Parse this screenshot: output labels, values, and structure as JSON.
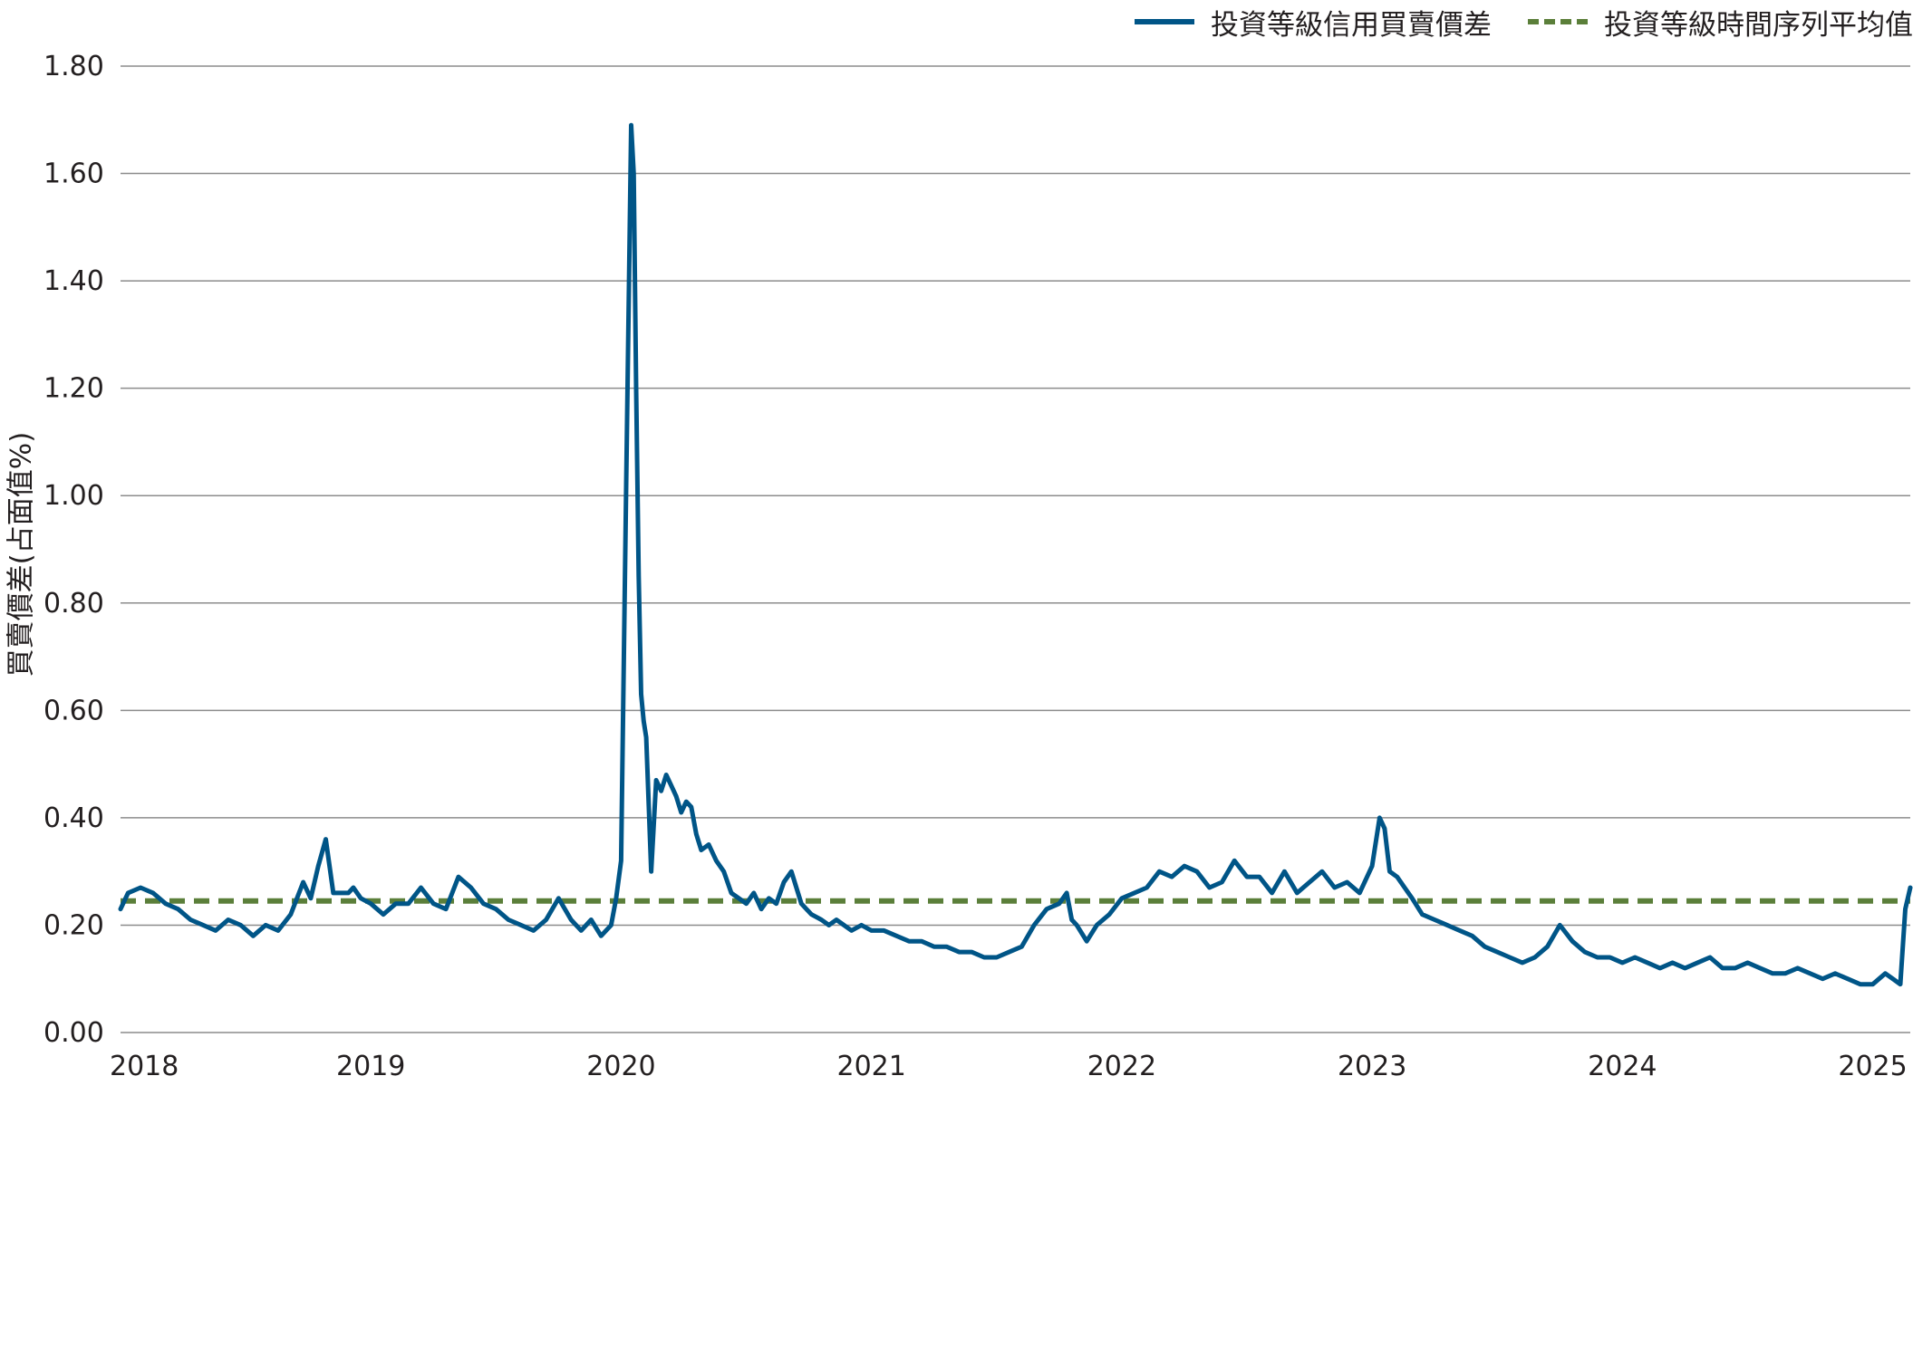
{
  "legend": {
    "series1": "投資等級信用買賣價差",
    "series2": "投資等級時間序列平均值"
  },
  "colors": {
    "series1": "#005587",
    "series2": "#5b7f3a",
    "grid": "#8c8c8c"
  },
  "chart_data": {
    "type": "line",
    "title": "",
    "xlabel": "",
    "ylabel": "買賣價差(占面值%)",
    "ylim": [
      0,
      1.8
    ],
    "xlim": [
      2018,
      2025.15
    ],
    "y_tick_labels": [
      "1.80",
      "1.60",
      "1.40",
      "1.20",
      "1.00",
      "0.80",
      "0.60",
      "0.40",
      "0.20",
      "0.00"
    ],
    "x_tick_labels": [
      "2018",
      "2019",
      "2020",
      "2021",
      "2022",
      "2023",
      "2024",
      "2025"
    ],
    "grid": true,
    "legend_position": "top-right",
    "series": [
      {
        "name": "投資等級信用買賣價差",
        "style": "solid",
        "x": [
          2018.0,
          2018.03,
          2018.08,
          2018.13,
          2018.18,
          2018.23,
          2018.28,
          2018.33,
          2018.38,
          2018.43,
          2018.48,
          2018.53,
          2018.58,
          2018.63,
          2018.68,
          2018.73,
          2018.76,
          2018.79,
          2018.82,
          2018.85,
          2018.88,
          2018.91,
          2018.93,
          2018.96,
          2019.0,
          2019.05,
          2019.1,
          2019.15,
          2019.2,
          2019.25,
          2019.3,
          2019.35,
          2019.4,
          2019.45,
          2019.5,
          2019.55,
          2019.6,
          2019.65,
          2019.7,
          2019.75,
          2019.8,
          2019.84,
          2019.88,
          2019.92,
          2019.96,
          2019.98,
          2020.0,
          2020.02,
          2020.04,
          2020.05,
          2020.06,
          2020.07,
          2020.08,
          2020.09,
          2020.1,
          2020.12,
          2020.14,
          2020.16,
          2020.18,
          2020.2,
          2020.22,
          2020.24,
          2020.26,
          2020.28,
          2020.3,
          2020.32,
          2020.35,
          2020.38,
          2020.41,
          2020.44,
          2020.47,
          2020.5,
          2020.53,
          2020.56,
          2020.59,
          2020.62,
          2020.65,
          2020.68,
          2020.72,
          2020.76,
          2020.8,
          2020.83,
          2020.86,
          2020.89,
          2020.92,
          2020.96,
          2021.0,
          2021.05,
          2021.1,
          2021.15,
          2021.2,
          2021.25,
          2021.3,
          2021.35,
          2021.4,
          2021.45,
          2021.5,
          2021.55,
          2021.6,
          2021.65,
          2021.7,
          2021.75,
          2021.78,
          2021.8,
          2021.82,
          2021.86,
          2021.9,
          2021.95,
          2022.0,
          2022.05,
          2022.1,
          2022.15,
          2022.2,
          2022.25,
          2022.3,
          2022.35,
          2022.4,
          2022.45,
          2022.5,
          2022.55,
          2022.6,
          2022.65,
          2022.7,
          2022.75,
          2022.8,
          2022.85,
          2022.9,
          2022.95,
          2023.0,
          2023.03,
          2023.05,
          2023.07,
          2023.1,
          2023.13,
          2023.16,
          2023.2,
          2023.25,
          2023.3,
          2023.35,
          2023.4,
          2023.45,
          2023.5,
          2023.55,
          2023.6,
          2023.65,
          2023.7,
          2023.75,
          2023.8,
          2023.85,
          2023.9,
          2023.95,
          2024.0,
          2024.05,
          2024.1,
          2024.15,
          2024.2,
          2024.25,
          2024.3,
          2024.35,
          2024.4,
          2024.45,
          2024.5,
          2024.55,
          2024.6,
          2024.65,
          2024.7,
          2024.75,
          2024.8,
          2024.85,
          2024.9,
          2024.95,
          2025.0,
          2025.05,
          2025.08,
          2025.11,
          2025.13,
          2025.15
        ],
        "values": [
          0.23,
          0.26,
          0.27,
          0.26,
          0.24,
          0.23,
          0.21,
          0.2,
          0.19,
          0.21,
          0.2,
          0.18,
          0.2,
          0.19,
          0.22,
          0.28,
          0.25,
          0.31,
          0.36,
          0.26,
          0.26,
          0.26,
          0.27,
          0.25,
          0.24,
          0.22,
          0.24,
          0.24,
          0.27,
          0.24,
          0.23,
          0.29,
          0.27,
          0.24,
          0.23,
          0.21,
          0.2,
          0.19,
          0.21,
          0.25,
          0.21,
          0.19,
          0.21,
          0.18,
          0.2,
          0.25,
          0.32,
          1.02,
          1.69,
          1.6,
          1.2,
          0.85,
          0.63,
          0.58,
          0.55,
          0.3,
          0.47,
          0.45,
          0.48,
          0.46,
          0.44,
          0.41,
          0.43,
          0.42,
          0.37,
          0.34,
          0.35,
          0.32,
          0.3,
          0.26,
          0.25,
          0.24,
          0.26,
          0.23,
          0.25,
          0.24,
          0.28,
          0.3,
          0.24,
          0.22,
          0.21,
          0.2,
          0.21,
          0.2,
          0.19,
          0.2,
          0.19,
          0.19,
          0.18,
          0.17,
          0.17,
          0.16,
          0.16,
          0.15,
          0.15,
          0.14,
          0.14,
          0.15,
          0.16,
          0.2,
          0.23,
          0.24,
          0.26,
          0.21,
          0.2,
          0.17,
          0.2,
          0.22,
          0.25,
          0.26,
          0.27,
          0.3,
          0.29,
          0.31,
          0.3,
          0.27,
          0.28,
          0.32,
          0.29,
          0.29,
          0.26,
          0.3,
          0.26,
          0.28,
          0.3,
          0.27,
          0.28,
          0.26,
          0.31,
          0.4,
          0.38,
          0.3,
          0.29,
          0.27,
          0.25,
          0.22,
          0.21,
          0.2,
          0.19,
          0.18,
          0.16,
          0.15,
          0.14,
          0.13,
          0.14,
          0.16,
          0.2,
          0.17,
          0.15,
          0.14,
          0.14,
          0.13,
          0.14,
          0.13,
          0.12,
          0.13,
          0.12,
          0.13,
          0.14,
          0.12,
          0.12,
          0.13,
          0.12,
          0.11,
          0.11,
          0.12,
          0.11,
          0.1,
          0.11,
          0.1,
          0.09,
          0.09,
          0.11,
          0.1,
          0.09,
          0.23,
          0.27
        ]
      },
      {
        "name": "投資等級時間序列平均值",
        "style": "dashed",
        "x": [
          2018.0,
          2025.15
        ],
        "values": [
          0.245,
          0.245
        ]
      }
    ]
  }
}
